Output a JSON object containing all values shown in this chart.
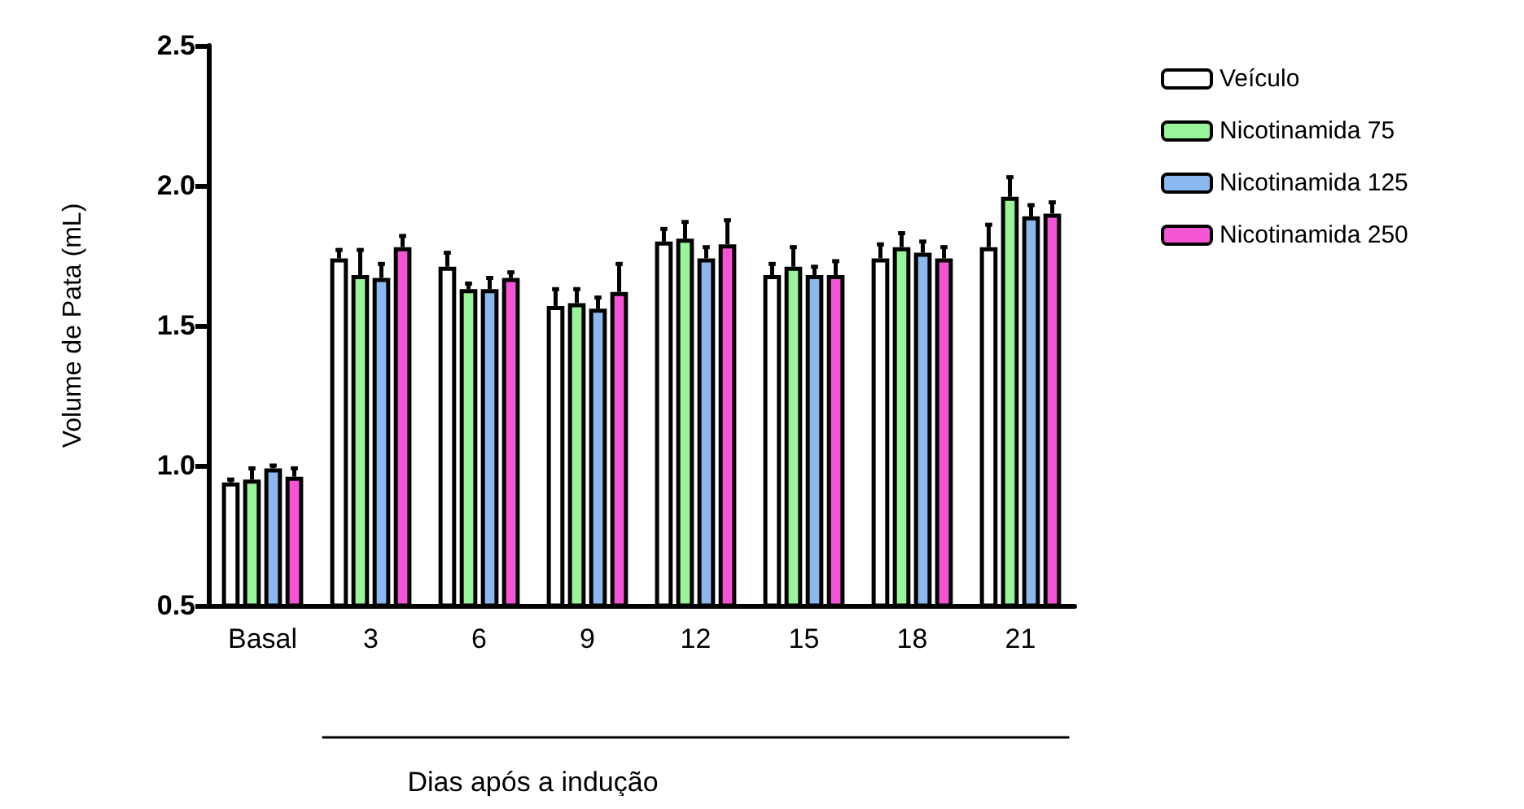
{
  "chart_data": {
    "type": "bar",
    "ylabel": "Volume de Pata (mL)",
    "xlabel": "Dias após a indução",
    "categories": [
      "Basal",
      "3",
      "6",
      "9",
      "12",
      "15",
      "18",
      "21"
    ],
    "series": [
      {
        "name": "Veículo",
        "color": "#ffffff",
        "values": [
          0.94,
          1.74,
          1.71,
          1.57,
          1.8,
          1.68,
          1.74,
          1.78
        ],
        "errors": [
          [
            0.94,
            0.95
          ],
          [
            1.74,
            1.77
          ],
          [
            1.71,
            1.76
          ],
          [
            1.57,
            1.63
          ],
          [
            1.8,
            1.845
          ],
          [
            1.68,
            1.72
          ],
          [
            1.74,
            1.79
          ],
          [
            1.78,
            1.86
          ]
        ]
      },
      {
        "name": "Nicotinamida 75",
        "color": "#99f599",
        "values": [
          0.95,
          1.68,
          1.63,
          1.58,
          1.81,
          1.71,
          1.78,
          1.96
        ],
        "errors": [
          [
            0.95,
            0.99
          ],
          [
            1.68,
            1.77
          ],
          [
            1.63,
            1.65
          ],
          [
            1.58,
            1.63
          ],
          [
            1.81,
            1.87
          ],
          [
            1.71,
            1.78
          ],
          [
            1.78,
            1.83
          ],
          [
            1.96,
            2.03
          ]
        ]
      },
      {
        "name": "Nicotinamida 125",
        "color": "#8cb8f0",
        "values": [
          0.99,
          1.67,
          1.63,
          1.56,
          1.74,
          1.68,
          1.76,
          1.89
        ],
        "errors": [
          [
            0.99,
            1.0
          ],
          [
            1.67,
            1.72
          ],
          [
            1.63,
            1.67
          ],
          [
            1.56,
            1.6
          ],
          [
            1.74,
            1.78
          ],
          [
            1.68,
            1.71
          ],
          [
            1.76,
            1.8
          ],
          [
            1.89,
            1.93
          ]
        ]
      },
      {
        "name": "Nicotinamida 250",
        "color": "#f555d5",
        "values": [
          0.96,
          1.78,
          1.67,
          1.62,
          1.79,
          1.68,
          1.74,
          1.9
        ],
        "errors": [
          [
            0.96,
            0.99
          ],
          [
            1.78,
            1.82
          ],
          [
            1.67,
            1.69
          ],
          [
            1.62,
            1.72
          ],
          [
            1.79,
            1.876
          ],
          [
            1.68,
            1.73
          ],
          [
            1.74,
            1.78
          ],
          [
            1.9,
            1.94
          ]
        ]
      }
    ],
    "ylim": [
      0.5,
      2.5
    ],
    "yticks": [
      0.5,
      {
        "value": 1,
        "label": "1.0"
      },
      1.5,
      {
        "value": 2,
        "label": "2.0"
      },
      2.5
    ],
    "grid": false,
    "legend": "right"
  }
}
